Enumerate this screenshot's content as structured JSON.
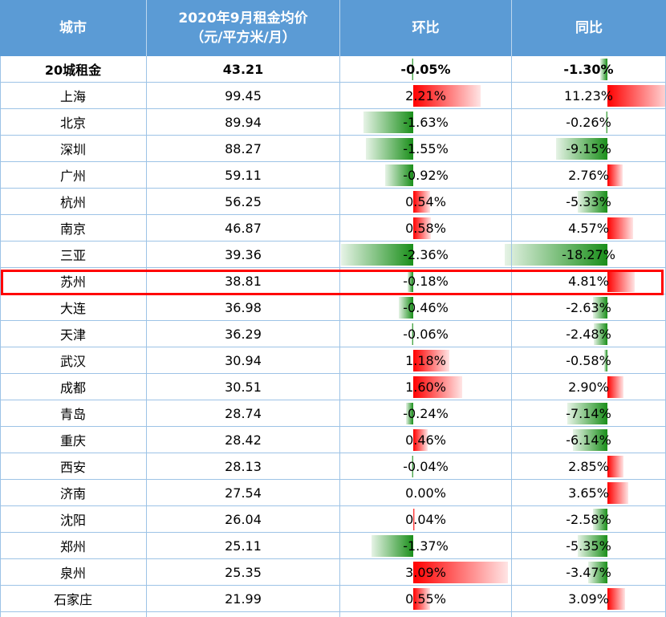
{
  "headers": {
    "city": "城市",
    "price_line1": "2020年9月租金均价",
    "price_line2": "（元/平方米/月）",
    "mom": "环比",
    "yoy": "同比"
  },
  "highlighted_city": "苏州",
  "colors": {
    "header_bg": "#5b9bd5",
    "negative": "#1a8f1a",
    "positive": "#ff0000",
    "highlight": "#ff0000"
  },
  "rows": [
    {
      "city": "20城租金",
      "price": "43.21",
      "mom": "-0.05%",
      "mom_val": -0.05,
      "yoy": "-1.30%",
      "yoy_val": -1.3,
      "bold": true
    },
    {
      "city": "上海",
      "price": "99.45",
      "mom": "2.21%",
      "mom_val": 2.21,
      "yoy": "11.23%",
      "yoy_val": 11.23
    },
    {
      "city": "北京",
      "price": "89.94",
      "mom": "-1.63%",
      "mom_val": -1.63,
      "yoy": "-0.26%",
      "yoy_val": -0.26
    },
    {
      "city": "深圳",
      "price": "88.27",
      "mom": "-1.55%",
      "mom_val": -1.55,
      "yoy": "-9.15%",
      "yoy_val": -9.15
    },
    {
      "city": "广州",
      "price": "59.11",
      "mom": "-0.92%",
      "mom_val": -0.92,
      "yoy": "2.76%",
      "yoy_val": 2.76
    },
    {
      "city": "杭州",
      "price": "56.25",
      "mom": "0.54%",
      "mom_val": 0.54,
      "yoy": "-5.33%",
      "yoy_val": -5.33
    },
    {
      "city": "南京",
      "price": "46.87",
      "mom": "0.58%",
      "mom_val": 0.58,
      "yoy": "4.57%",
      "yoy_val": 4.57
    },
    {
      "city": "三亚",
      "price": "39.36",
      "mom": "-2.36%",
      "mom_val": -2.36,
      "yoy": "-18.27%",
      "yoy_val": -18.27
    },
    {
      "city": "苏州",
      "price": "38.81",
      "mom": "-0.18%",
      "mom_val": -0.18,
      "yoy": "4.81%",
      "yoy_val": 4.81
    },
    {
      "city": "大连",
      "price": "36.98",
      "mom": "-0.46%",
      "mom_val": -0.46,
      "yoy": "-2.63%",
      "yoy_val": -2.63
    },
    {
      "city": "天津",
      "price": "36.29",
      "mom": "-0.06%",
      "mom_val": -0.06,
      "yoy": "-2.48%",
      "yoy_val": -2.48
    },
    {
      "city": "武汉",
      "price": "30.94",
      "mom": "1.18%",
      "mom_val": 1.18,
      "yoy": "-0.58%",
      "yoy_val": -0.58
    },
    {
      "city": "成都",
      "price": "30.51",
      "mom": "1.60%",
      "mom_val": 1.6,
      "yoy": "2.90%",
      "yoy_val": 2.9
    },
    {
      "city": "青岛",
      "price": "28.74",
      "mom": "-0.24%",
      "mom_val": -0.24,
      "yoy": "-7.14%",
      "yoy_val": -7.14
    },
    {
      "city": "重庆",
      "price": "28.42",
      "mom": "0.46%",
      "mom_val": 0.46,
      "yoy": "-6.14%",
      "yoy_val": -6.14
    },
    {
      "city": "西安",
      "price": "28.13",
      "mom": "-0.04%",
      "mom_val": -0.04,
      "yoy": "2.85%",
      "yoy_val": 2.85
    },
    {
      "city": "济南",
      "price": "27.54",
      "mom": "0.00%",
      "mom_val": 0.0,
      "yoy": "3.65%",
      "yoy_val": 3.65
    },
    {
      "city": "沈阳",
      "price": "26.04",
      "mom": "0.04%",
      "mom_val": 0.04,
      "yoy": "-2.58%",
      "yoy_val": -2.58
    },
    {
      "city": "郑州",
      "price": "25.11",
      "mom": "-1.37%",
      "mom_val": -1.37,
      "yoy": "-5.35%",
      "yoy_val": -5.35
    },
    {
      "city": "泉州",
      "price": "25.35",
      "mom": "3.09%",
      "mom_val": 3.09,
      "yoy": "-3.47%",
      "yoy_val": -3.47
    },
    {
      "city": "石家庄",
      "price": "21.99",
      "mom": "0.55%",
      "mom_val": 0.55,
      "yoy": "3.09%",
      "yoy_val": 3.09
    }
  ]
}
